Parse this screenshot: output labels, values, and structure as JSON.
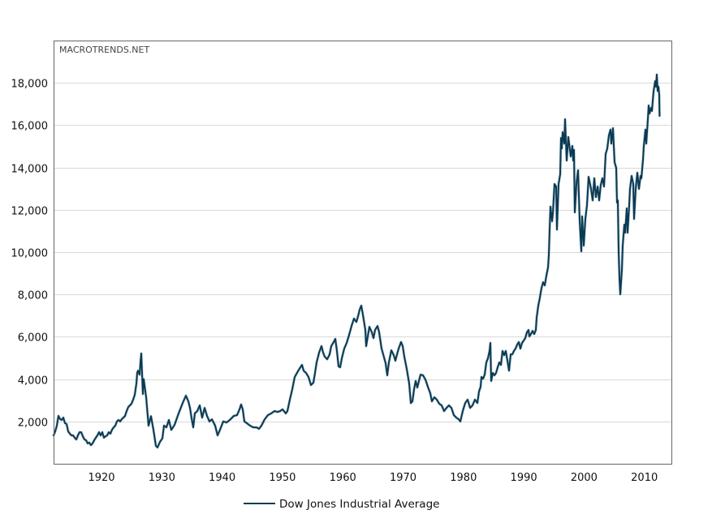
{
  "chart_data": {
    "type": "line",
    "title": "",
    "watermark": "MACROTRENDS.NET",
    "xlabel": "",
    "ylabel": "",
    "xlim": [
      1912.06,
      2014.48
    ],
    "ylim": [
      0,
      20000
    ],
    "grid": "horizontal",
    "legend_position": "bottom-center",
    "x_ticks": [
      1920,
      1930,
      1940,
      1950,
      1960,
      1970,
      1980,
      1990,
      2000,
      2010
    ],
    "x_tick_labels": [
      "1920",
      "1930",
      "1940",
      "1950",
      "1960",
      "1970",
      "1980",
      "1990",
      "2000",
      "2010"
    ],
    "y_ticks": [
      2000,
      4000,
      6000,
      8000,
      10000,
      12000,
      14000,
      16000,
      18000
    ],
    "y_tick_labels": [
      "2,000",
      "4,000",
      "6,000",
      "8,000",
      "10,000",
      "12,000",
      "14,000",
      "16,000",
      "18,000"
    ],
    "colors": {
      "line": "#0b3a53",
      "grid": "#d9d9d9",
      "frame": "#666666"
    },
    "series": [
      {
        "name": "Dow Jones Industrial Average",
        "x": [
          1912.06,
          1912.33,
          1912.6,
          1912.87,
          1913.14,
          1913.41,
          1913.67,
          1913.94,
          1914.21,
          1914.48,
          1914.75,
          1915.02,
          1915.29,
          1915.56,
          1915.83,
          1916.1,
          1916.37,
          1916.64,
          1916.9,
          1917.17,
          1917.44,
          1917.71,
          1917.98,
          1918.25,
          1918.52,
          1918.79,
          1919.06,
          1919.33,
          1919.6,
          1919.87,
          1920.13,
          1920.4,
          1920.67,
          1920.94,
          1921.21,
          1921.48,
          1921.75,
          1922.02,
          1922.29,
          1922.56,
          1922.83,
          1923.1,
          1923.36,
          1923.63,
          1923.9,
          1924.17,
          1924.44,
          1924.71,
          1924.98,
          1925.25,
          1925.52,
          1925.79,
          1925.92,
          1926.06,
          1926.33,
          1926.46,
          1926.59,
          1926.86,
          1927.0,
          1927.4,
          1927.81,
          1928.21,
          1928.61,
          1929.02,
          1929.29,
          1929.69,
          1930.09,
          1930.36,
          1930.77,
          1931.17,
          1931.57,
          1932.11,
          1932.79,
          1933.46,
          1934.0,
          1934.4,
          1934.67,
          1934.94,
          1935.21,
          1935.48,
          1935.88,
          1936.29,
          1936.69,
          1937.09,
          1937.5,
          1937.9,
          1938.3,
          1938.84,
          1939.25,
          1939.65,
          1940.19,
          1940.73,
          1941.27,
          1941.94,
          1942.48,
          1942.88,
          1943.15,
          1943.42,
          1943.69,
          1944.09,
          1944.63,
          1945.17,
          1945.71,
          1946.11,
          1946.51,
          1947.05,
          1947.59,
          1948.13,
          1948.67,
          1949.21,
          1949.61,
          1950.01,
          1950.55,
          1950.82,
          1951.22,
          1951.63,
          1952.03,
          1952.57,
          1952.97,
          1953.24,
          1953.51,
          1953.92,
          1954.32,
          1954.72,
          1955.13,
          1955.4,
          1955.67,
          1956.07,
          1956.47,
          1956.74,
          1957.01,
          1957.42,
          1957.82,
          1958.09,
          1958.49,
          1958.76,
          1959.03,
          1959.3,
          1959.57,
          1959.84,
          1960.24,
          1960.65,
          1961.05,
          1961.45,
          1961.86,
          1962.26,
          1962.53,
          1962.8,
          1963.07,
          1963.34,
          1963.74,
          1963.88,
          1964.15,
          1964.41,
          1964.82,
          1965.09,
          1965.36,
          1965.76,
          1966.03,
          1966.43,
          1966.7,
          1967.11,
          1967.38,
          1967.64,
          1968.05,
          1968.45,
          1968.72,
          1968.99,
          1969.26,
          1969.66,
          1969.93,
          1970.2,
          1970.61,
          1971.01,
          1971.28,
          1971.55,
          1971.82,
          1972.09,
          1972.36,
          1972.62,
          1972.89,
          1973.3,
          1973.7,
          1974.1,
          1974.51,
          1974.78,
          1975.18,
          1975.59,
          1975.99,
          1976.39,
          1976.8,
          1977.2,
          1977.6,
          1978.01,
          1978.41,
          1978.82,
          1979.22,
          1979.49,
          1979.89,
          1980.3,
          1980.7,
          1981.1,
          1981.51,
          1981.91,
          1982.32,
          1982.58,
          1982.85,
          1982.99,
          1983.26,
          1983.53,
          1983.8,
          1984.06,
          1984.33,
          1984.47,
          1984.6,
          1984.87,
          1985.14,
          1985.41,
          1985.68,
          1985.95,
          1986.22,
          1986.49,
          1986.76,
          1987.03,
          1987.29,
          1987.56,
          1987.83,
          1988.1,
          1988.37,
          1988.64,
          1988.91,
          1989.18,
          1989.45,
          1989.72,
          1989.99,
          1990.26,
          1990.52,
          1990.79,
          1990.93,
          1991.2,
          1991.47,
          1991.74,
          1992.01,
          1992.14,
          1992.41,
          1992.68,
          1992.95,
          1993.22,
          1993.49,
          1993.76,
          1994.02,
          1994.16,
          1994.29,
          1994.43,
          1994.7,
          1994.83,
          1995.1,
          1995.37,
          1995.5,
          1995.77,
          1996.04,
          1996.18,
          1996.31,
          1996.45,
          1996.72,
          1996.85,
          1997.12,
          1997.39,
          1997.79,
          1998.06,
          1998.2,
          1998.33,
          1998.47,
          1998.73,
          1999.0,
          1999.27,
          1999.54,
          1999.68,
          1999.95,
          2000.22,
          2000.48,
          2000.75,
          2000.89,
          2001.16,
          2001.43,
          2001.7,
          2001.97,
          2002.24,
          2002.5,
          2002.77,
          2003.04,
          2003.31,
          2003.58,
          2003.85,
          2004.12,
          2004.39,
          2004.52,
          2004.79,
          2005.06,
          2005.33,
          2005.46,
          2005.6,
          2005.73,
          2005.87,
          2006.0,
          2006.27,
          2006.41,
          2006.68,
          2006.81,
          2007.08,
          2007.21,
          2007.48,
          2007.62,
          2007.89,
          2008.16,
          2008.29,
          2008.56,
          2008.83,
          2009.1,
          2009.37,
          2009.5,
          2009.77,
          2009.91,
          2010.17,
          2010.31,
          2010.58,
          2010.71,
          2010.85,
          2011.12,
          2011.25,
          2011.52,
          2011.79,
          2011.92,
          2012.06,
          2012.19,
          2012.32,
          2012.46,
          2012.52
        ],
        "y": [
          1340,
          1530,
          1800,
          2260,
          2110,
          2070,
          2180,
          1920,
          1880,
          1530,
          1420,
          1340,
          1340,
          1230,
          1150,
          1340,
          1490,
          1490,
          1300,
          1150,
          1110,
          960,
          1000,
          880,
          960,
          1110,
          1230,
          1340,
          1490,
          1340,
          1490,
          1230,
          1300,
          1340,
          1490,
          1420,
          1610,
          1720,
          1800,
          2000,
          2070,
          2000,
          2110,
          2180,
          2260,
          2490,
          2680,
          2760,
          2840,
          3030,
          3260,
          3790,
          4290,
          4400,
          4210,
          4790,
          5210,
          3300,
          4000,
          3150,
          1800,
          2250,
          1600,
          850,
          770,
          1030,
          1200,
          1800,
          1720,
          2070,
          1600,
          1840,
          2380,
          2870,
          3220,
          2950,
          2640,
          2150,
          1720,
          2380,
          2490,
          2760,
          2180,
          2640,
          2260,
          2000,
          2100,
          1800,
          1340,
          1610,
          2000,
          1950,
          2070,
          2260,
          2300,
          2570,
          2800,
          2570,
          2000,
          1920,
          1800,
          1720,
          1720,
          1650,
          1800,
          2100,
          2300,
          2380,
          2490,
          2450,
          2490,
          2570,
          2380,
          2490,
          3030,
          3520,
          4100,
          4370,
          4560,
          4670,
          4400,
          4290,
          4100,
          3720,
          3830,
          4290,
          4790,
          5250,
          5560,
          5250,
          5060,
          4940,
          5170,
          5560,
          5750,
          5900,
          5330,
          4600,
          4560,
          4980,
          5440,
          5710,
          6090,
          6510,
          6860,
          6700,
          6970,
          7280,
          7470,
          7050,
          6320,
          5560,
          6020,
          6470,
          6210,
          5940,
          6320,
          6510,
          6210,
          5440,
          5170,
          4750,
          4180,
          4790,
          5360,
          5130,
          4870,
          5170,
          5440,
          5750,
          5560,
          5060,
          4480,
          3790,
          2870,
          2950,
          3520,
          3910,
          3600,
          3910,
          4210,
          4180,
          3980,
          3640,
          3330,
          2950,
          3140,
          3030,
          2840,
          2760,
          2490,
          2640,
          2760,
          2640,
          2300,
          2180,
          2100,
          2000,
          2490,
          2870,
          3030,
          2640,
          2760,
          3030,
          2870,
          3410,
          3640,
          4100,
          4020,
          4210,
          4790,
          4980,
          5330,
          5710,
          3910,
          4290,
          4180,
          4290,
          4560,
          4790,
          4670,
          5330,
          5130,
          5330,
          4870,
          4400,
          5170,
          5170,
          5330,
          5440,
          5630,
          5750,
          5440,
          5710,
          5820,
          5940,
          6210,
          6320,
          6020,
          6130,
          6280,
          6130,
          6320,
          6900,
          7470,
          7850,
          8310,
          8580,
          8430,
          8890,
          9270,
          9850,
          11070,
          12150,
          11460,
          11840,
          13220,
          13100,
          11070,
          13220,
          13680,
          15400,
          14900,
          15670,
          15130,
          16280,
          14330,
          15440,
          14520,
          15020,
          14330,
          14830,
          11880,
          13220,
          13870,
          11490,
          10040,
          11690,
          10310,
          11570,
          12220,
          13560,
          13370,
          12990,
          12450,
          13490,
          12600,
          13100,
          12450,
          13180,
          13490,
          13100,
          14640,
          14900,
          15520,
          15790,
          15130,
          15860,
          14250,
          13980,
          12340,
          12450,
          10040,
          8770,
          8010,
          9160,
          10310,
          11300,
          10920,
          12070,
          10920,
          12220,
          12990,
          13600,
          13220,
          11570,
          12990,
          13750,
          12990,
          13600,
          13490,
          14370,
          15020,
          15790,
          15130,
          16280,
          16930,
          16550,
          16820,
          16670,
          17590,
          18080,
          17820,
          18390,
          17620,
          17820,
          17430,
          16440
        ]
      }
    ]
  }
}
